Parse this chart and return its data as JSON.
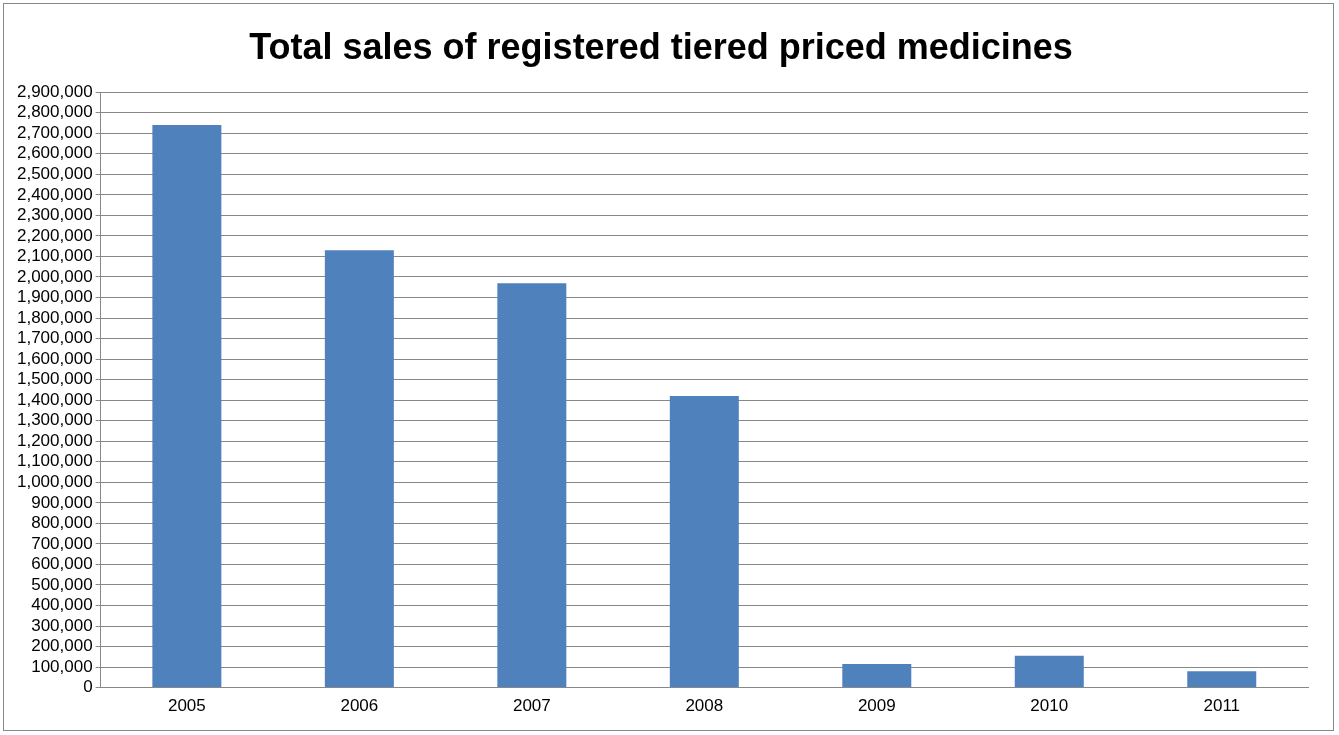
{
  "chart_data": {
    "type": "bar",
    "title": "Total sales of registered tiered priced medicines",
    "categories": [
      "2005",
      "2006",
      "2007",
      "2008",
      "2009",
      "2010",
      "2011"
    ],
    "values": [
      2740000,
      2130000,
      1970000,
      1420000,
      115000,
      155000,
      80000
    ],
    "color": "#4f81bd",
    "ylim": [
      0,
      2900000
    ],
    "yticks": [
      0,
      {
        "value": 100000,
        "label": "100,000"
      },
      {
        "value": 200000,
        "label": "200,000"
      },
      {
        "value": 300000,
        "label": "300,000"
      },
      {
        "value": 400000,
        "label": "400,000"
      },
      {
        "value": 500000,
        "label": "500,000"
      },
      {
        "value": 600000,
        "label": "600,000"
      },
      {
        "value": 700000,
        "label": "700,000"
      },
      {
        "value": 800000,
        "label": "800,000"
      },
      {
        "value": 900000,
        "label": "900,000"
      },
      {
        "value": 1000000,
        "label": "1,000,000"
      },
      {
        "value": 1100000,
        "label": "1,100,000"
      },
      {
        "value": 1200000,
        "label": "1,200,000"
      },
      {
        "value": 1300000,
        "label": "1,300,000"
      },
      {
        "value": 1400000,
        "label": "1,400,000"
      },
      {
        "value": 1500000,
        "label": "1,500,000"
      },
      {
        "value": 1600000,
        "label": "1,600,000"
      },
      {
        "value": 1700000,
        "label": "1,700,000"
      },
      {
        "value": 1800000,
        "label": "1,800,000"
      },
      {
        "value": 1900000,
        "label": "1,900,000"
      },
      {
        "value": 2000000,
        "label": "2,000,000"
      },
      {
        "value": 2100000,
        "label": "2,100,000"
      },
      {
        "value": 2200000,
        "label": "2,200,000"
      },
      {
        "value": 2300000,
        "label": "2,300,000"
      },
      {
        "value": 2400000,
        "label": "2,400,000"
      },
      {
        "value": 2500000,
        "label": "2,500,000"
      },
      {
        "value": 2600000,
        "label": "2,600,000"
      },
      {
        "value": 2700000,
        "label": "2,700,000"
      },
      {
        "value": 2800000,
        "label": "2,800,000"
      },
      {
        "value": 2900000,
        "label": "2,900,000"
      }
    ],
    "grid": "y",
    "legend": false
  }
}
